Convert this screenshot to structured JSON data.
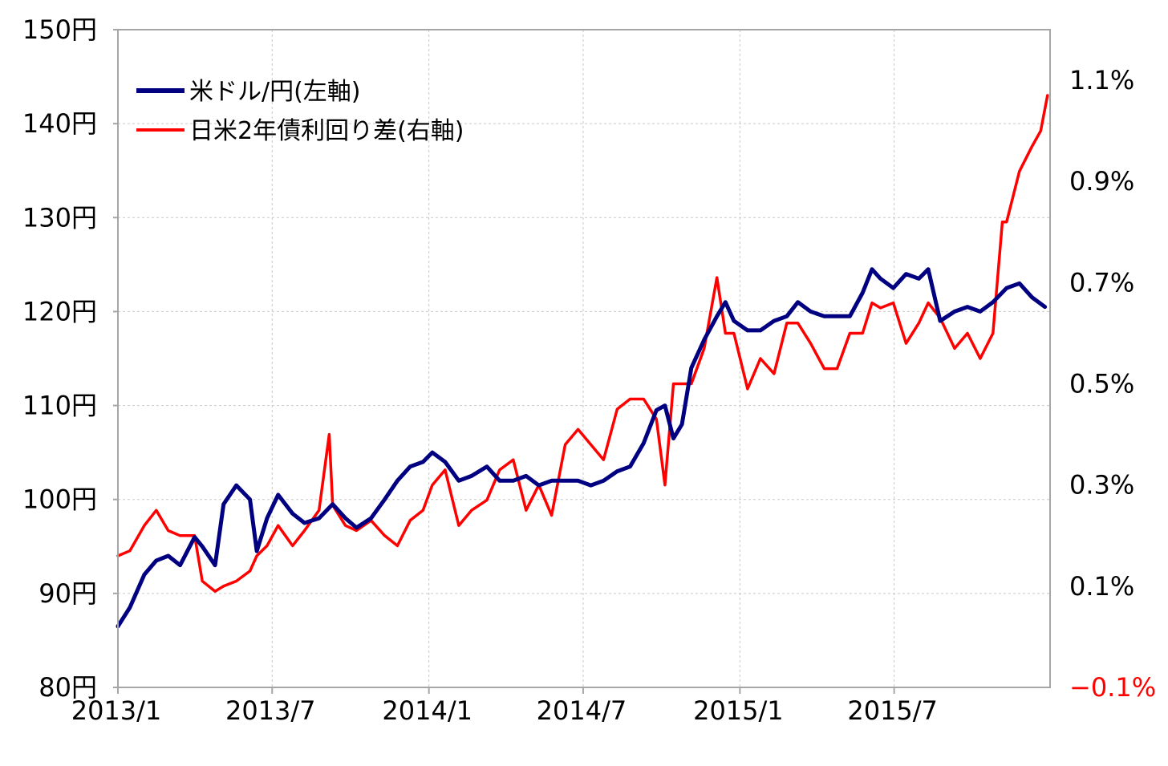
{
  "chart_data": {
    "type": "line",
    "grid": true,
    "legend_position": "top-left",
    "x_tick_labels": [
      "2013/1",
      "2013/7",
      "2014/1",
      "2014/7",
      "2015/1",
      "2015/7"
    ],
    "x_range": [
      "2013/1",
      "2015/12"
    ],
    "y_left": {
      "range": [
        80,
        150
      ],
      "ticks": [
        80,
        90,
        100,
        110,
        120,
        130,
        140,
        150
      ],
      "tick_labels": [
        "80円",
        "90円",
        "100円",
        "110円",
        "120円",
        "130円",
        "140円",
        "150円"
      ]
    },
    "y_right": {
      "range": [
        -0.1,
        1.2
      ],
      "ticks": [
        -0.1,
        0.1,
        0.3,
        0.5,
        0.7,
        0.9,
        1.1
      ],
      "tick_labels": [
        "−0.1%",
        "0.1%",
        "0.3%",
        "0.5%",
        "0.7%",
        "0.9%",
        "1.1%"
      ],
      "negative_label_color": "#ff0000"
    },
    "series": [
      {
        "name": "米ドル/円(左軸)",
        "axis": "left",
        "color": "#000080",
        "x": [
          "2013/1/1",
          "2013/1/15",
          "2013/2/1",
          "2013/2/15",
          "2013/3/1",
          "2013/3/15",
          "2013/4/1",
          "2013/4/10",
          "2013/4/25",
          "2013/5/5",
          "2013/5/20",
          "2013/6/5",
          "2013/6/13",
          "2013/6/25",
          "2013/7/8",
          "2013/7/25",
          "2013/8/8",
          "2013/8/25",
          "2013/9/10",
          "2013/9/25",
          "2013/10/8",
          "2013/10/25",
          "2013/11/10",
          "2013/11/25",
          "2013/12/10",
          "2013/12/25",
          "2014/1/5",
          "2014/1/20",
          "2014/2/5",
          "2014/2/20",
          "2014/3/10",
          "2014/3/25",
          "2014/4/10",
          "2014/4/25",
          "2014/5/10",
          "2014/5/25",
          "2014/6/10",
          "2014/6/25",
          "2014/7/10",
          "2014/7/25",
          "2014/8/10",
          "2014/8/25",
          "2014/9/10",
          "2014/9/25",
          "2014/10/5",
          "2014/10/15",
          "2014/10/25",
          "2014/11/5",
          "2014/11/20",
          "2014/12/5",
          "2014/12/15",
          "2014/12/25",
          "2015/1/10",
          "2015/1/25",
          "2015/2/10",
          "2015/2/25",
          "2015/3/10",
          "2015/3/25",
          "2015/4/10",
          "2015/4/25",
          "2015/5/10",
          "2015/5/25",
          "2015/6/5",
          "2015/6/15",
          "2015/6/30",
          "2015/7/15",
          "2015/7/30",
          "2015/8/10",
          "2015/8/24",
          "2015/9/10",
          "2015/9/25",
          "2015/10/10",
          "2015/10/25",
          "2015/11/10",
          "2015/11/25",
          "2015/12/10",
          "2015/12/25"
        ],
        "values": [
          86.5,
          88.5,
          92,
          93.5,
          94,
          93,
          96,
          95,
          93,
          99.5,
          101.5,
          100,
          94.5,
          98,
          100.5,
          98.5,
          97.5,
          98,
          99.5,
          98,
          97,
          98,
          100,
          102,
          103.5,
          104,
          105,
          104,
          102,
          102.5,
          103.5,
          102,
          102,
          102.5,
          101.5,
          102,
          102,
          102,
          101.5,
          102,
          103,
          103.5,
          106,
          109.5,
          110,
          106.5,
          108,
          114,
          117,
          119.5,
          121,
          119,
          118,
          118,
          119,
          119.5,
          121,
          120,
          119.5,
          119.5,
          119.5,
          122,
          124.5,
          123.5,
          122.5,
          124,
          123.5,
          124.5,
          119,
          120,
          120.5,
          120,
          121,
          122.5,
          123,
          121.5,
          120.5
        ]
      },
      {
        "name": "日米2年債利回り差(右軸)",
        "axis": "right",
        "color": "#ff0000",
        "x": [
          "2013/1/1",
          "2013/1/15",
          "2013/2/1",
          "2013/2/15",
          "2013/3/1",
          "2013/3/15",
          "2013/4/1",
          "2013/4/10",
          "2013/4/25",
          "2013/5/5",
          "2013/5/20",
          "2013/6/5",
          "2013/6/13",
          "2013/6/25",
          "2013/7/8",
          "2013/7/25",
          "2013/8/8",
          "2013/8/25",
          "2013/9/6",
          "2013/9/10",
          "2013/9/25",
          "2013/10/8",
          "2013/10/25",
          "2013/11/10",
          "2013/11/25",
          "2013/12/10",
          "2013/12/25",
          "2014/1/5",
          "2014/1/20",
          "2014/2/5",
          "2014/2/20",
          "2014/3/10",
          "2014/3/25",
          "2014/4/10",
          "2014/4/25",
          "2014/5/10",
          "2014/5/25",
          "2014/6/10",
          "2014/6/25",
          "2014/7/10",
          "2014/7/25",
          "2014/8/10",
          "2014/8/25",
          "2014/9/10",
          "2014/9/25",
          "2014/10/5",
          "2014/10/15",
          "2014/10/25",
          "2014/11/5",
          "2014/11/20",
          "2014/12/5",
          "2014/12/15",
          "2014/12/25",
          "2015/1/10",
          "2015/1/25",
          "2015/2/10",
          "2015/2/25",
          "2015/3/10",
          "2015/3/25",
          "2015/4/10",
          "2015/4/25",
          "2015/5/10",
          "2015/5/25",
          "2015/6/5",
          "2015/6/15",
          "2015/6/30",
          "2015/7/15",
          "2015/7/30",
          "2015/8/10",
          "2015/8/24",
          "2015/9/10",
          "2015/9/25",
          "2015/10/10",
          "2015/10/25",
          "2015/11/5",
          "2015/11/10",
          "2015/11/25",
          "2015/12/10",
          "2015/12/20",
          "2015/12/28"
        ],
        "values": [
          0.16,
          0.17,
          0.22,
          0.25,
          0.21,
          0.2,
          0.2,
          0.11,
          0.09,
          0.1,
          0.11,
          0.13,
          0.16,
          0.18,
          0.22,
          0.18,
          0.21,
          0.25,
          0.4,
          0.26,
          0.22,
          0.21,
          0.23,
          0.2,
          0.18,
          0.23,
          0.25,
          0.3,
          0.33,
          0.22,
          0.25,
          0.27,
          0.33,
          0.35,
          0.25,
          0.3,
          0.24,
          0.38,
          0.41,
          0.38,
          0.35,
          0.45,
          0.47,
          0.47,
          0.43,
          0.3,
          0.5,
          0.5,
          0.5,
          0.57,
          0.71,
          0.6,
          0.6,
          0.49,
          0.55,
          0.52,
          0.62,
          0.62,
          0.58,
          0.53,
          0.53,
          0.6,
          0.6,
          0.66,
          0.65,
          0.66,
          0.58,
          0.62,
          0.66,
          0.63,
          0.57,
          0.6,
          0.55,
          0.6,
          0.82,
          0.82,
          0.92,
          0.97,
          1.0,
          1.07
        ]
      }
    ]
  }
}
